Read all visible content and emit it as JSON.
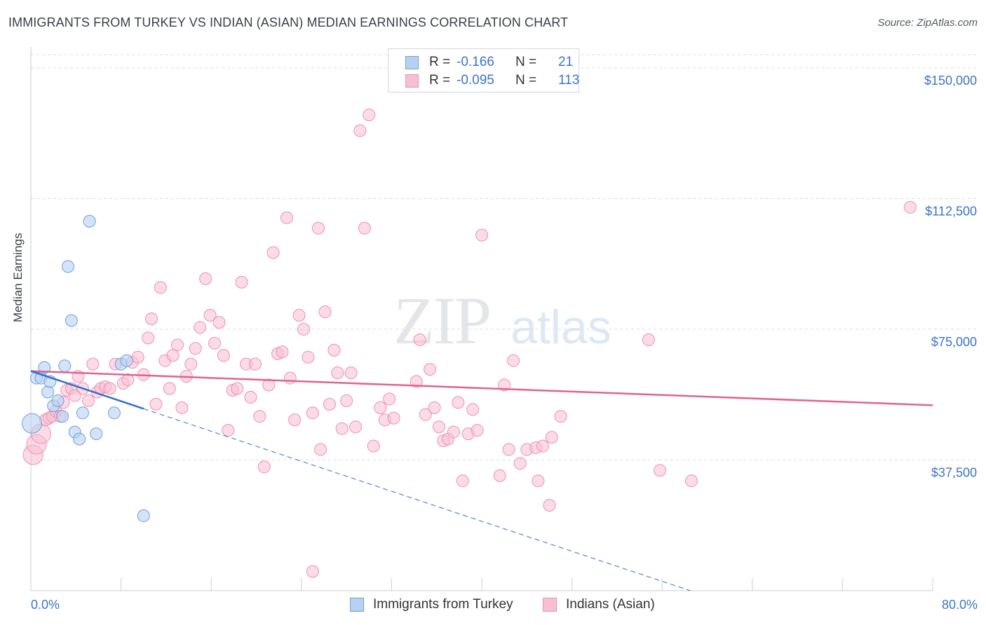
{
  "header": {
    "title": "IMMIGRANTS FROM TURKEY VS INDIAN (ASIAN) MEDIAN EARNINGS CORRELATION CHART",
    "source": "Source: ZipAtlas.com"
  },
  "watermark": {
    "zip": "ZIP",
    "atlas": "atlas"
  },
  "colors": {
    "turkey_fill": "#b8d1f2",
    "turkey_stroke": "#6e9fdc",
    "turkey_line": "#2f6fcf",
    "indian_fill": "#f7c0d1",
    "indian_stroke": "#ee8fae",
    "indian_line": "#e2628e",
    "tick_text": "#3d74c9",
    "grid": "#d9dce2"
  },
  "legend_top": {
    "rows": [
      {
        "r_label": "R =",
        "r_value": "-0.166",
        "n_label": "N =",
        "n_value": "21"
      },
      {
        "r_label": "R =",
        "r_value": "-0.095",
        "n_label": "N =",
        "n_value": "113"
      }
    ]
  },
  "legend_bottom": {
    "items": [
      {
        "label": "Immigrants from Turkey"
      },
      {
        "label": "Indians (Asian)"
      }
    ]
  },
  "chart_data": {
    "type": "scatter",
    "title": "IMMIGRANTS FROM TURKEY VS INDIAN (ASIAN) MEDIAN EARNINGS CORRELATION CHART",
    "xlabel": "",
    "ylabel": "Median Earnings",
    "xlim": [
      0,
      80
    ],
    "ylim": [
      0,
      156000
    ],
    "x_tick_labels": [
      "0.0%",
      "80.0%"
    ],
    "y_ticks": [
      37500,
      75000,
      112500,
      150000
    ],
    "y_tick_labels": [
      "$37,500",
      "$75,000",
      "$112,500",
      "$150,000"
    ],
    "grid": true,
    "legend_position": "top-center",
    "series": [
      {
        "name": "Immigrants from Turkey",
        "r": -0.166,
        "n": 21,
        "trend": {
          "x": [
            0,
            10
          ],
          "y": [
            63000,
            52200
          ]
        },
        "trend_extension": {
          "x": [
            10,
            58.5
          ],
          "y": [
            52200,
            0
          ]
        },
        "points": [
          [
            0.1,
            48000
          ],
          [
            0.5,
            61000
          ],
          [
            0.9,
            61000
          ],
          [
            1.2,
            64000
          ],
          [
            1.5,
            57000
          ],
          [
            1.7,
            60000
          ],
          [
            2.0,
            53000
          ],
          [
            2.4,
            54500
          ],
          [
            2.8,
            50000
          ],
          [
            3.0,
            64500
          ],
          [
            3.3,
            93000
          ],
          [
            3.6,
            77500
          ],
          [
            3.9,
            45500
          ],
          [
            4.3,
            43500
          ],
          [
            4.6,
            51000
          ],
          [
            5.2,
            106000
          ],
          [
            5.8,
            45000
          ],
          [
            7.4,
            51000
          ],
          [
            8.0,
            65000
          ],
          [
            8.5,
            66000
          ],
          [
            10.0,
            21500
          ]
        ]
      },
      {
        "name": "Indians (Asian)",
        "r": -0.095,
        "n": 113,
        "trend": {
          "x": [
            0,
            80
          ],
          "y": [
            63000,
            53200
          ]
        },
        "points": [
          [
            0.2,
            39000
          ],
          [
            0.5,
            42000
          ],
          [
            0.9,
            45000
          ],
          [
            1.3,
            49000
          ],
          [
            1.6,
            49500
          ],
          [
            1.9,
            50000
          ],
          [
            2.2,
            51500
          ],
          [
            2.6,
            50000
          ],
          [
            2.9,
            54000
          ],
          [
            3.2,
            57500
          ],
          [
            3.6,
            58000
          ],
          [
            3.9,
            56000
          ],
          [
            4.2,
            61500
          ],
          [
            4.6,
            58000
          ],
          [
            5.1,
            54500
          ],
          [
            5.5,
            65000
          ],
          [
            5.9,
            57000
          ],
          [
            6.2,
            58000
          ],
          [
            6.6,
            58500
          ],
          [
            7.0,
            58000
          ],
          [
            7.5,
            65000
          ],
          [
            8.2,
            59500
          ],
          [
            8.6,
            60500
          ],
          [
            9.0,
            65500
          ],
          [
            9.5,
            67000
          ],
          [
            10.0,
            62000
          ],
          [
            10.4,
            72500
          ],
          [
            10.7,
            78000
          ],
          [
            11.1,
            53500
          ],
          [
            11.5,
            87000
          ],
          [
            11.9,
            66000
          ],
          [
            12.3,
            58000
          ],
          [
            12.6,
            67500
          ],
          [
            13.0,
            70500
          ],
          [
            13.4,
            52500
          ],
          [
            13.8,
            61500
          ],
          [
            14.2,
            65000
          ],
          [
            14.6,
            69500
          ],
          [
            15.0,
            75500
          ],
          [
            15.5,
            89500
          ],
          [
            15.9,
            79000
          ],
          [
            16.3,
            71000
          ],
          [
            16.7,
            77000
          ],
          [
            17.1,
            67500
          ],
          [
            17.5,
            46000
          ],
          [
            17.9,
            57500
          ],
          [
            18.3,
            58000
          ],
          [
            18.7,
            88500
          ],
          [
            19.1,
            65000
          ],
          [
            19.5,
            55500
          ],
          [
            19.9,
            65000
          ],
          [
            20.3,
            50000
          ],
          [
            20.7,
            35500
          ],
          [
            21.1,
            59000
          ],
          [
            21.5,
            97000
          ],
          [
            21.9,
            68000
          ],
          [
            22.3,
            68500
          ],
          [
            22.7,
            107000
          ],
          [
            23.0,
            61000
          ],
          [
            23.4,
            49000
          ],
          [
            23.8,
            79000
          ],
          [
            24.2,
            75000
          ],
          [
            24.6,
            67000
          ],
          [
            25.0,
            51000
          ],
          [
            25.5,
            104000
          ],
          [
            25.7,
            40500
          ],
          [
            26.1,
            80000
          ],
          [
            26.5,
            53500
          ],
          [
            26.9,
            69000
          ],
          [
            27.2,
            62500
          ],
          [
            27.6,
            46500
          ],
          [
            28.0,
            54500
          ],
          [
            28.4,
            62500
          ],
          [
            28.8,
            47000
          ],
          [
            29.2,
            132000
          ],
          [
            29.6,
            104000
          ],
          [
            30.0,
            136500
          ],
          [
            30.4,
            41500
          ],
          [
            31.0,
            52500
          ],
          [
            31.4,
            49000
          ],
          [
            31.8,
            55000
          ],
          [
            32.2,
            49500
          ],
          [
            34.2,
            60000
          ],
          [
            34.5,
            72000
          ],
          [
            35.0,
            50500
          ],
          [
            35.4,
            63500
          ],
          [
            35.8,
            52500
          ],
          [
            36.2,
            47000
          ],
          [
            36.6,
            43000
          ],
          [
            37.0,
            43500
          ],
          [
            37.5,
            45500
          ],
          [
            37.9,
            54000
          ],
          [
            38.3,
            31500
          ],
          [
            38.8,
            45000
          ],
          [
            39.2,
            52000
          ],
          [
            39.6,
            46000
          ],
          [
            40.0,
            102000
          ],
          [
            41.6,
            33000
          ],
          [
            42.0,
            59000
          ],
          [
            42.4,
            40500
          ],
          [
            42.8,
            66000
          ],
          [
            43.4,
            36500
          ],
          [
            44.0,
            40500
          ],
          [
            45.0,
            31500
          ],
          [
            46.0,
            24500
          ],
          [
            44.8,
            41000
          ],
          [
            45.4,
            41500
          ],
          [
            46.2,
            44000
          ],
          [
            47.0,
            50000
          ],
          [
            54.8,
            72000
          ],
          [
            55.8,
            34500
          ],
          [
            58.6,
            31500
          ],
          [
            78.0,
            110000
          ]
        ]
      },
      {
        "name": "",
        "extra_point_note": "",
        "points": []
      }
    ],
    "outlier_points": [
      [
        25.0,
        5500
      ]
    ]
  }
}
